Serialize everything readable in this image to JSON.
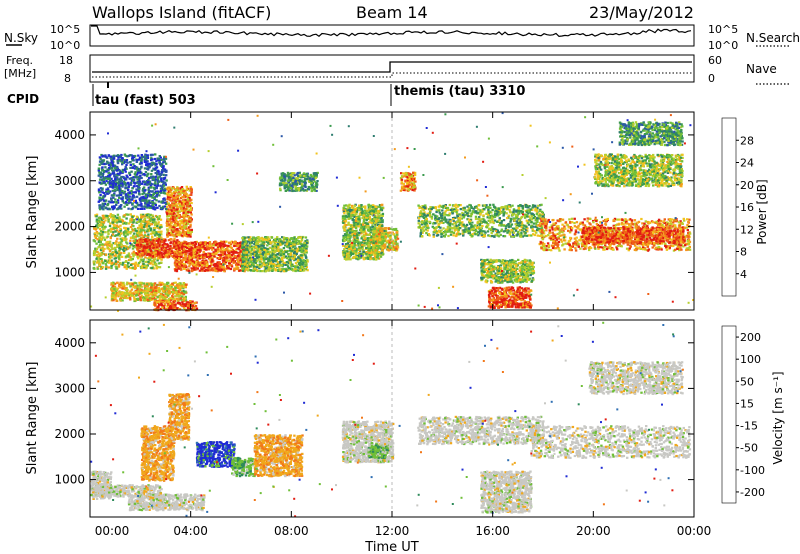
{
  "header": {
    "station": "Wallops Island (fitACF)",
    "beam": "Beam 14",
    "date": "23/May/2012"
  },
  "noise_panel": {
    "left_label": "N.Sky",
    "right_label": "N.Search",
    "left_ticks": [
      "10^5",
      "10^0"
    ],
    "right_ticks": [
      "10^5",
      "10^0"
    ]
  },
  "freq_panel": {
    "left_label_1": "Freq.",
    "left_label_2": "[MHz]",
    "right_label": "Nave",
    "left_ticks": [
      "18",
      "8"
    ],
    "right_ticks": [
      "60",
      "0"
    ],
    "cpid_label": "CPID",
    "modes": [
      {
        "label": "tau (fast) 503",
        "start_hour": 0
      },
      {
        "label": "themis (tau) 3310",
        "start_hour": 12
      }
    ]
  },
  "chart_data": [
    {
      "type": "heatmap",
      "name": "power",
      "ylabel": "Slant Range [km]",
      "xlabel": "",
      "y_ticks": [
        "1000",
        "2000",
        "3000",
        "4000"
      ],
      "x_ticks": [
        "00:00",
        "04:00",
        "08:00",
        "12:00",
        "16:00",
        "20:00",
        "00:00"
      ],
      "ylim": [
        180,
        4500
      ],
      "xlim_hours": [
        0,
        24
      ],
      "colorbar": {
        "label": "Power [dB]",
        "ticks": [
          "4",
          "8",
          "12",
          "16",
          "20",
          "24",
          "28"
        ],
        "colors": [
          "#1f2bd4",
          "#2c58a8",
          "#2e7d6f",
          "#3a9a4e",
          "#6fbf38",
          "#b6cf2e",
          "#f1c31e",
          "#f39a1c",
          "#ef6018",
          "#e21c12"
        ]
      },
      "echo_regions": [
        {
          "t0": 0.1,
          "t1": 2.8,
          "r0": 1100,
          "r1": 2300,
          "level": 0.55
        },
        {
          "t0": 1.8,
          "t1": 3.5,
          "r0": 1350,
          "r1": 1750,
          "level": 0.9
        },
        {
          "t0": 3.0,
          "t1": 4.0,
          "r0": 1800,
          "r1": 2900,
          "level": 0.75
        },
        {
          "t0": 3.3,
          "t1": 6.2,
          "r0": 1050,
          "r1": 1700,
          "level": 0.85
        },
        {
          "t0": 6.0,
          "t1": 8.6,
          "r0": 1050,
          "r1": 1800,
          "level": 0.45
        },
        {
          "t0": 7.5,
          "t1": 9.0,
          "r0": 2800,
          "r1": 3200,
          "level": 0.35
        },
        {
          "t0": 0.8,
          "t1": 3.8,
          "r0": 400,
          "r1": 800,
          "level": 0.65
        },
        {
          "t0": 2.5,
          "t1": 4.2,
          "r0": 200,
          "r1": 400,
          "level": 0.85
        },
        {
          "t0": 10.0,
          "t1": 11.6,
          "r0": 1300,
          "r1": 2500,
          "level": 0.5
        },
        {
          "t0": 11.2,
          "t1": 12.2,
          "r0": 1500,
          "r1": 2000,
          "level": 0.6
        },
        {
          "t0": 12.3,
          "t1": 12.9,
          "r0": 2800,
          "r1": 3200,
          "level": 0.75
        },
        {
          "t0": 13.0,
          "t1": 18.0,
          "r0": 1800,
          "r1": 2500,
          "level": 0.45
        },
        {
          "t0": 15.5,
          "t1": 17.6,
          "r0": 800,
          "r1": 1300,
          "level": 0.5
        },
        {
          "t0": 15.8,
          "t1": 17.5,
          "r0": 250,
          "r1": 700,
          "level": 0.9
        },
        {
          "t0": 17.8,
          "t1": 23.8,
          "r0": 1500,
          "r1": 2200,
          "level": 0.75
        },
        {
          "t0": 19.5,
          "t1": 23.6,
          "r0": 1650,
          "r1": 2000,
          "level": 0.88
        },
        {
          "t0": 20.0,
          "t1": 23.5,
          "r0": 2900,
          "r1": 3600,
          "level": 0.5
        },
        {
          "t0": 21.0,
          "t1": 23.5,
          "r0": 3800,
          "r1": 4300,
          "level": 0.35
        },
        {
          "t0": 0.3,
          "t1": 3.0,
          "r0": 2400,
          "r1": 3600,
          "level": 0.15
        }
      ]
    },
    {
      "type": "heatmap",
      "name": "velocity",
      "ylabel": "Slant Range [km]",
      "xlabel": "Time UT",
      "y_ticks": [
        "1000",
        "2000",
        "3000",
        "4000"
      ],
      "x_ticks": [
        "00:00",
        "04:00",
        "08:00",
        "12:00",
        "16:00",
        "20:00",
        "00:00"
      ],
      "ylim": [
        180,
        4500
      ],
      "xlim_hours": [
        0,
        24
      ],
      "colorbar": {
        "label": "Velocity [m s⁻¹]",
        "ticks": [
          "200",
          "100",
          "50",
          "15",
          "-15",
          "-50",
          "-100",
          "-200"
        ],
        "colors": [
          "#1f2bd4",
          "#2f6fb3",
          "#2e8a5a",
          "#6fbf38",
          "#c8c8c4",
          "#f0a81c",
          "#f2781a",
          "#e21c12"
        ]
      },
      "echo_regions": [
        {
          "t0": 0.1,
          "t1": 2.8,
          "r0": 650,
          "r1": 900,
          "cls": "gray"
        },
        {
          "t0": 1.5,
          "t1": 4.5,
          "r0": 350,
          "r1": 700,
          "cls": "gray"
        },
        {
          "t0": 2.0,
          "t1": 3.3,
          "r0": 1000,
          "r1": 2200,
          "cls": "orange"
        },
        {
          "t0": 3.1,
          "t1": 3.9,
          "r0": 1900,
          "r1": 2900,
          "cls": "orange"
        },
        {
          "t0": 4.2,
          "t1": 5.7,
          "r0": 1300,
          "r1": 1850,
          "cls": "blue"
        },
        {
          "t0": 5.6,
          "t1": 6.6,
          "r0": 1100,
          "r1": 1500,
          "cls": "green"
        },
        {
          "t0": 6.5,
          "t1": 8.4,
          "r0": 1100,
          "r1": 2000,
          "cls": "orange"
        },
        {
          "t0": 10.0,
          "t1": 12.0,
          "r0": 1400,
          "r1": 2300,
          "cls": "gray"
        },
        {
          "t0": 11.0,
          "t1": 11.8,
          "r0": 1500,
          "r1": 1800,
          "cls": "green"
        },
        {
          "t0": 13.0,
          "t1": 18.0,
          "r0": 1800,
          "r1": 2400,
          "cls": "gray"
        },
        {
          "t0": 15.5,
          "t1": 17.5,
          "r0": 300,
          "r1": 1200,
          "cls": "gray"
        },
        {
          "t0": 17.5,
          "t1": 23.8,
          "r0": 1500,
          "r1": 2200,
          "cls": "gray"
        },
        {
          "t0": 19.8,
          "t1": 23.5,
          "r0": 2900,
          "r1": 3600,
          "cls": "gray"
        },
        {
          "t0": 0.0,
          "t1": 0.8,
          "r0": 600,
          "r1": 1200,
          "cls": "gray"
        }
      ]
    }
  ]
}
